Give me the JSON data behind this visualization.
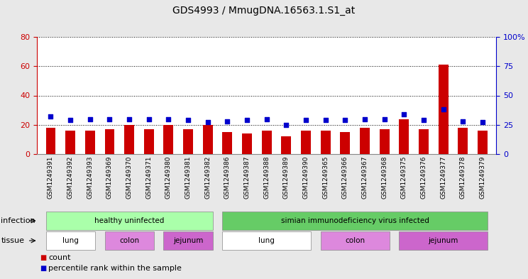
{
  "title": "GDS4993 / MmugDNA.16563.1.S1_at",
  "samples": [
    "GSM1249391",
    "GSM1249392",
    "GSM1249393",
    "GSM1249369",
    "GSM1249370",
    "GSM1249371",
    "GSM1249380",
    "GSM1249381",
    "GSM1249382",
    "GSM1249386",
    "GSM1249387",
    "GSM1249388",
    "GSM1249389",
    "GSM1249390",
    "GSM1249365",
    "GSM1249366",
    "GSM1249367",
    "GSM1249368",
    "GSM1249375",
    "GSM1249376",
    "GSM1249377",
    "GSM1249378",
    "GSM1249379"
  ],
  "counts": [
    18,
    16,
    16,
    17,
    20,
    17,
    20,
    17,
    20,
    15,
    14,
    16,
    12,
    16,
    16,
    15,
    18,
    17,
    24,
    17,
    61,
    18,
    16
  ],
  "percentiles": [
    32,
    29,
    30,
    30,
    30,
    30,
    30,
    29,
    27,
    28,
    29,
    30,
    25,
    29,
    29,
    29,
    30,
    30,
    34,
    29,
    38,
    28,
    27
  ],
  "bar_color": "#cc0000",
  "dot_color": "#0000cc",
  "ylim_left": [
    0,
    80
  ],
  "ylim_right": [
    0,
    100
  ],
  "yticks_left": [
    0,
    20,
    40,
    60,
    80
  ],
  "yticks_right": [
    0,
    25,
    50,
    75,
    100
  ],
  "ytick_labels_right": [
    "0",
    "25",
    "50",
    "75",
    "100%"
  ],
  "infection_groups": [
    {
      "label": "healthy uninfected",
      "start": 0,
      "end": 9,
      "color": "#aaffaa"
    },
    {
      "label": "simian immunodeficiency virus infected",
      "start": 9,
      "end": 23,
      "color": "#66cc66"
    }
  ],
  "tissue_groups": [
    {
      "label": "lung",
      "start": 0,
      "end": 3,
      "color": "#ffffff"
    },
    {
      "label": "colon",
      "start": 3,
      "end": 6,
      "color": "#dd88dd"
    },
    {
      "label": "jejunum",
      "start": 6,
      "end": 9,
      "color": "#cc66cc"
    },
    {
      "label": "lung",
      "start": 9,
      "end": 14,
      "color": "#ffffff"
    },
    {
      "label": "colon",
      "start": 14,
      "end": 18,
      "color": "#dd88dd"
    },
    {
      "label": "jejunum",
      "start": 18,
      "end": 23,
      "color": "#cc66cc"
    }
  ],
  "infection_label": "infection",
  "tissue_label": "tissue",
  "legend_count_label": "count",
  "legend_percentile_label": "percentile rank within the sample",
  "background_color": "#e8e8e8",
  "plot_bg_color": "#ffffff",
  "grid_color": "#000000"
}
